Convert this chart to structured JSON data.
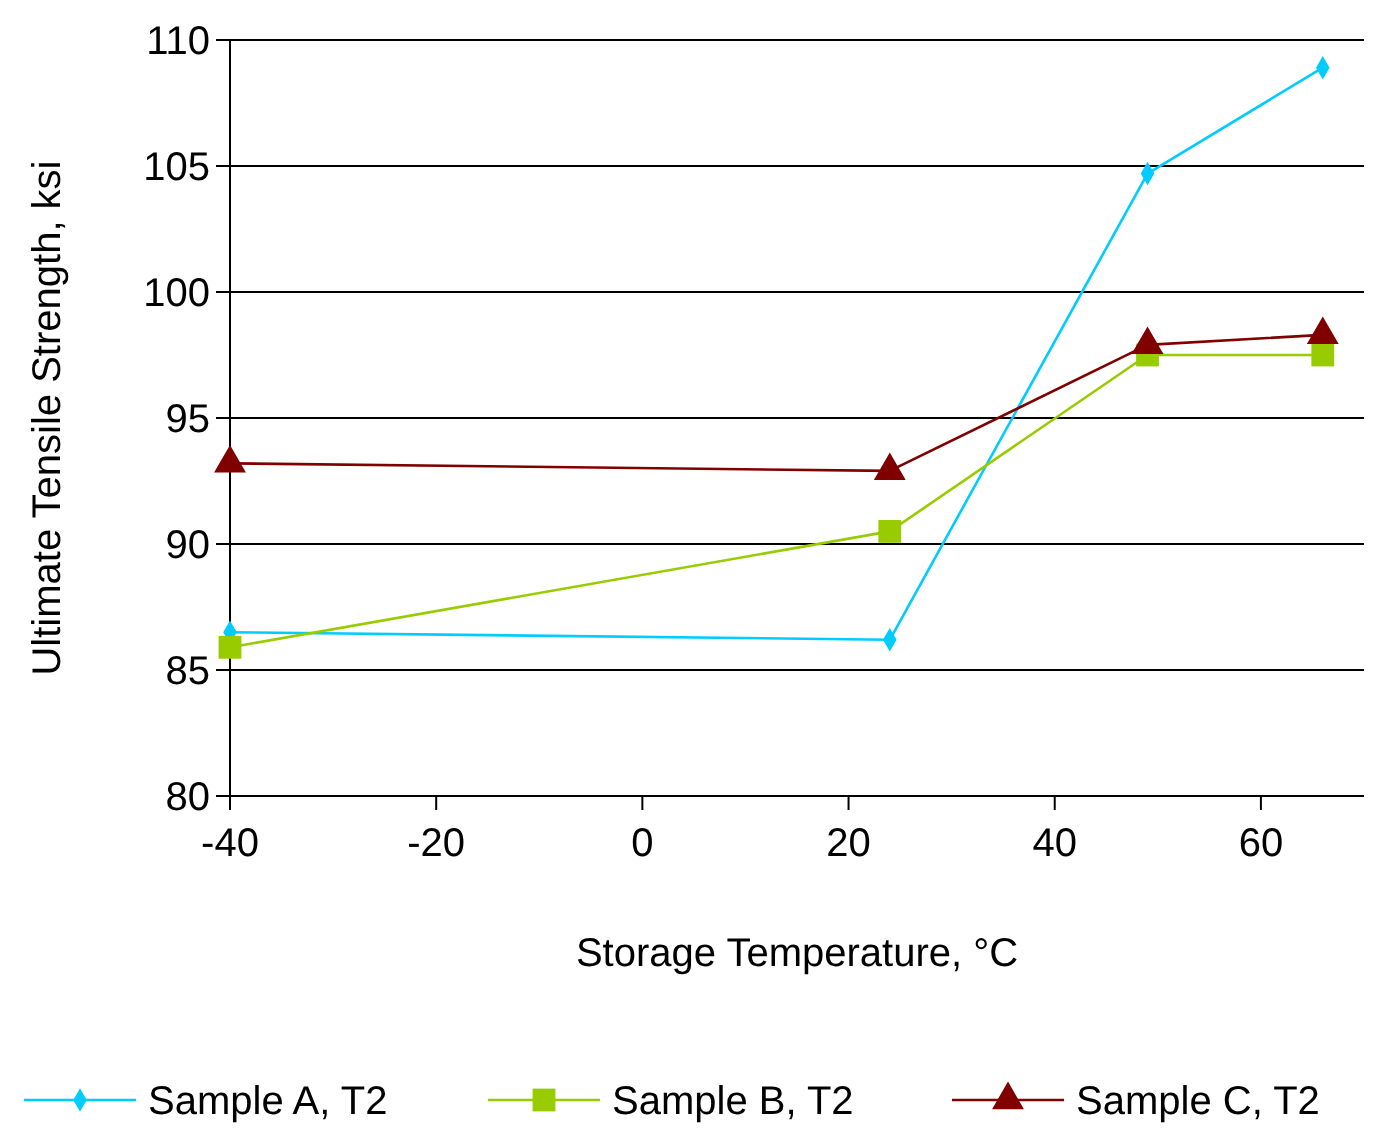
{
  "chart_data": {
    "type": "line",
    "xlabel": "Storage Temperature, °C",
    "ylabel": "Ultimate Tensile Strength, ksi",
    "x": [
      -40,
      24,
      49,
      66
    ],
    "series": [
      {
        "name": "Sample A, T2",
        "color": "#00ccff",
        "marker": "diamond",
        "values": [
          86.5,
          86.2,
          104.7,
          108.9
        ]
      },
      {
        "name": "Sample B, T2",
        "color": "#99cc00",
        "marker": "square",
        "values": [
          85.9,
          90.5,
          97.5,
          97.5
        ]
      },
      {
        "name": "Sample C, T2",
        "color": "#800000",
        "marker": "triangle",
        "values": [
          93.2,
          92.9,
          97.9,
          98.3
        ]
      }
    ],
    "xlim": [
      -40,
      70
    ],
    "xticks": [
      -40,
      -20,
      0,
      20,
      40,
      60
    ],
    "ylim": [
      80,
      110
    ],
    "yticks": [
      80,
      85,
      90,
      95,
      100,
      105,
      110
    ],
    "grid": "y",
    "legend": "bottom"
  }
}
